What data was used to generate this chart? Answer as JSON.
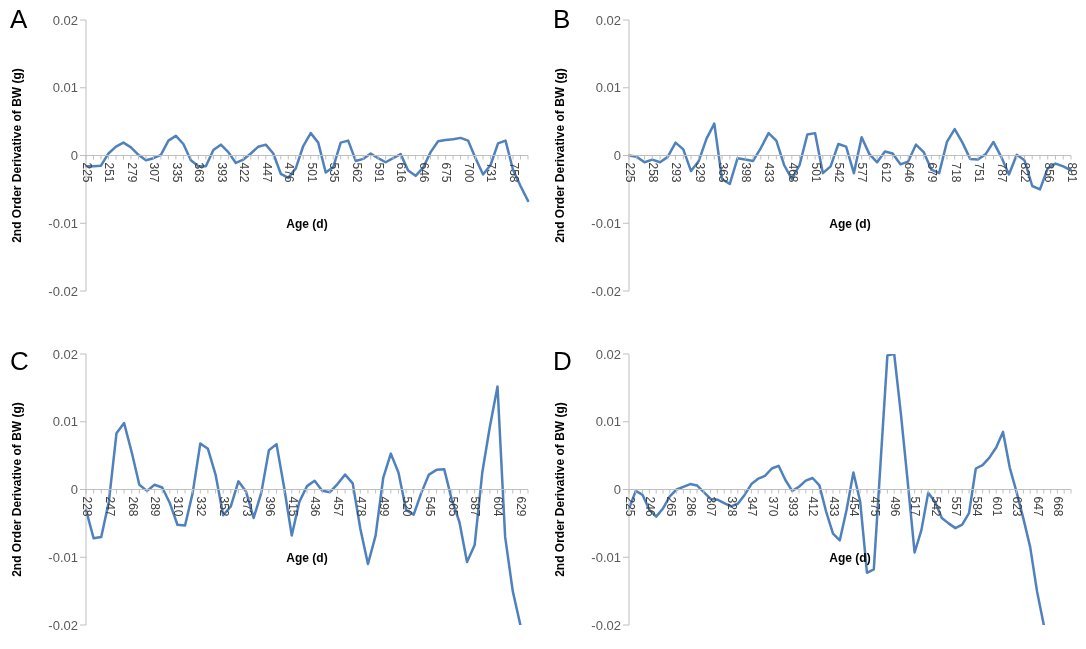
{
  "chart_data": [
    {
      "type": "line",
      "title": "A",
      "xlabel": "Age (d)",
      "ylabel": "2nd Order Derivative of BW (g)",
      "color": "#4f81bd",
      "marker": "none",
      "ylim": [
        -0.02,
        0.02
      ],
      "yticks": [
        -0.02,
        -0.01,
        0,
        0.01,
        0.02
      ],
      "categories": [
        "225",
        null,
        null,
        "251",
        null,
        null,
        "279",
        null,
        null,
        "307",
        null,
        null,
        "335",
        null,
        null,
        "363",
        null,
        null,
        "393",
        null,
        null,
        "422",
        null,
        null,
        "447",
        null,
        null,
        "476",
        null,
        null,
        "501",
        null,
        null,
        "535",
        null,
        null,
        "562",
        null,
        null,
        "591",
        null,
        null,
        "616",
        null,
        null,
        "646",
        null,
        null,
        "675",
        null,
        null,
        "700",
        null,
        null,
        "731",
        null,
        null,
        "758",
        null,
        null
      ],
      "values": [
        -0.0016,
        -0.0016,
        -0.0015,
        0.0003,
        0.0013,
        0.0019,
        0.0012,
        0.0001,
        -0.0007,
        -0.0004,
        0.0001,
        0.0022,
        0.0029,
        0.0017,
        -0.0007,
        -0.0016,
        -0.0016,
        0.0008,
        0.0016,
        0.0005,
        -0.0011,
        -0.0006,
        0.0003,
        0.0013,
        0.0016,
        0.0003,
        -0.0027,
        -0.0033,
        -0.0019,
        0.0014,
        0.0033,
        0.0019,
        -0.0025,
        -0.0017,
        0.0019,
        0.0022,
        -0.0008,
        -0.0005,
        0.0003,
        -0.0004,
        -0.001,
        -0.0004,
        0.0002,
        -0.0022,
        -0.003,
        -0.0018,
        0.0005,
        0.0021,
        0.0023,
        0.0024,
        0.0026,
        0.0022,
        -0.0004,
        -0.0028,
        -0.0014,
        0.0018,
        0.0022,
        -0.0021,
        -0.0045,
        -0.0067
      ]
    },
    {
      "type": "line",
      "title": "B",
      "xlabel": "Age (d)",
      "ylabel": "2nd Order Derivative of BW (g)",
      "color": "#4f81bd",
      "marker": "none",
      "ylim": [
        -0.02,
        0.02
      ],
      "yticks": [
        -0.02,
        -0.01,
        0,
        0.01,
        0.02
      ],
      "categories": [
        "225",
        null,
        null,
        "258",
        null,
        null,
        "293",
        null,
        null,
        "329",
        null,
        null,
        "363",
        null,
        null,
        "398",
        null,
        null,
        "433",
        null,
        null,
        "468",
        null,
        null,
        "501",
        null,
        null,
        "542",
        null,
        null,
        "577",
        null,
        null,
        "612",
        null,
        null,
        "646",
        null,
        null,
        "679",
        null,
        null,
        "718",
        null,
        null,
        "751",
        null,
        null,
        "787",
        null,
        null,
        "822",
        null,
        null,
        "856",
        null,
        null,
        "891"
      ],
      "values": [
        0,
        -0.0002,
        -0.001,
        -0.0006,
        -0.001,
        -0.0002,
        0.0019,
        0.0009,
        -0.0023,
        -0.0008,
        0.0025,
        0.0047,
        -0.0035,
        -0.0042,
        -0.0004,
        -0.0006,
        -0.0008,
        0.0011,
        0.0033,
        0.0022,
        -0.0014,
        -0.0035,
        -0.0014,
        0.0031,
        0.0033,
        -0.0026,
        -0.0016,
        0.0017,
        0.0013,
        -0.0026,
        0.0027,
        0.0002,
        -0.001,
        0.0006,
        0.0003,
        -0.0013,
        -0.0009,
        0.0016,
        0.0005,
        -0.0021,
        -0.0026,
        0.002,
        0.0039,
        0.0019,
        -0.0005,
        -0.0006,
        0.0002,
        0.002,
        -0.0002,
        -0.0028,
        0.0001,
        -0.0007,
        -0.0045,
        -0.005,
        -0.0019,
        -0.0012,
        -0.0016,
        -0.0022
      ]
    },
    {
      "type": "line",
      "title": "C",
      "xlabel": "Age (d)",
      "ylabel": "2nd Order Derivative of BW (g)",
      "color": "#4f81bd",
      "marker": "none",
      "ylim": [
        -0.02,
        0.02
      ],
      "yticks": [
        -0.02,
        -0.01,
        0,
        0.01,
        0.02
      ],
      "categories": [
        "228",
        null,
        null,
        "247",
        null,
        null,
        "268",
        null,
        null,
        "289",
        null,
        null,
        "310",
        null,
        null,
        "332",
        null,
        null,
        "352",
        null,
        null,
        "373",
        null,
        null,
        "396",
        null,
        null,
        "415",
        null,
        null,
        "436",
        null,
        null,
        "457",
        null,
        null,
        "478",
        null,
        null,
        "499",
        null,
        null,
        "520",
        null,
        null,
        "545",
        null,
        null,
        "565",
        null,
        null,
        "587",
        null,
        null,
        "604",
        null,
        null,
        "629",
        null
      ],
      "values": [
        -0.003,
        -0.0072,
        -0.007,
        -0.0018,
        0.0083,
        0.0098,
        0.0055,
        0.0007,
        -0.0002,
        0.0007,
        0.0003,
        -0.002,
        -0.0052,
        -0.0053,
        -0.0005,
        0.0068,
        0.006,
        0.0022,
        -0.0038,
        -0.0025,
        0.0012,
        -0.0003,
        -0.0042,
        -0.0005,
        0.0058,
        0.0067,
        0.0003,
        -0.0068,
        -0.0018,
        0.0005,
        0.0013,
        -0.0002,
        -0.0004,
        0.0008,
        0.0022,
        0.0009,
        -0.0058,
        -0.011,
        -0.0068,
        0.0017,
        0.0053,
        0.0025,
        -0.003,
        -0.0037,
        -0.0005,
        0.0022,
        0.0029,
        0.003,
        -0.0015,
        -0.0048,
        -0.0107,
        -0.0082,
        0.0025,
        0.0093,
        0.0152,
        -0.007,
        -0.015,
        -0.02,
        null
      ]
    },
    {
      "type": "line",
      "title": "D",
      "xlabel": "Age (d)",
      "ylabel": "2nd Order Derivative of BW (g)",
      "color": "#4f81bd",
      "marker": "none",
      "ylim": [
        -0.02,
        0.02
      ],
      "yticks": [
        -0.02,
        -0.01,
        0,
        0.01,
        0.02
      ],
      "categories": [
        "225",
        null,
        null,
        "246",
        null,
        null,
        "265",
        null,
        null,
        "286",
        null,
        null,
        "307",
        null,
        null,
        "328",
        null,
        null,
        "347",
        null,
        null,
        "370",
        null,
        null,
        "393",
        null,
        null,
        "412",
        null,
        null,
        "433",
        null,
        null,
        "454",
        null,
        null,
        "475",
        null,
        null,
        "496",
        null,
        null,
        "517",
        null,
        null,
        "542",
        null,
        null,
        "557",
        null,
        null,
        "584",
        null,
        null,
        "601",
        null,
        null,
        "623",
        null,
        null,
        "647",
        null,
        null,
        "668",
        null,
        null
      ],
      "values": [
        -0.0028,
        -0.0002,
        -0.0008,
        -0.003,
        -0.004,
        -0.0028,
        -0.001,
        0,
        0.0004,
        0.0008,
        0.0006,
        -0.0004,
        -0.0014,
        -0.0015,
        -0.002,
        -0.0025,
        -0.0021,
        -0.0008,
        0.0008,
        0.0016,
        0.002,
        0.0031,
        0.0035,
        0.0014,
        -0.0002,
        0.0004,
        0.0013,
        0.0017,
        0.0006,
        -0.0033,
        -0.0065,
        -0.0075,
        -0.003,
        0.0025,
        -0.0018,
        -0.0123,
        -0.0118,
        0.004,
        0.0198,
        0.02,
        0.011,
        0.001,
        -0.0093,
        -0.006,
        -0.0005,
        -0.0018,
        -0.0042,
        -0.005,
        -0.0057,
        -0.0052,
        -0.0035,
        0.0031,
        0.0036,
        0.0047,
        0.0062,
        0.0085,
        0.0032,
        -0.0004,
        -0.0043,
        -0.0085,
        -0.015,
        -0.02,
        null,
        null,
        null,
        null
      ]
    }
  ]
}
